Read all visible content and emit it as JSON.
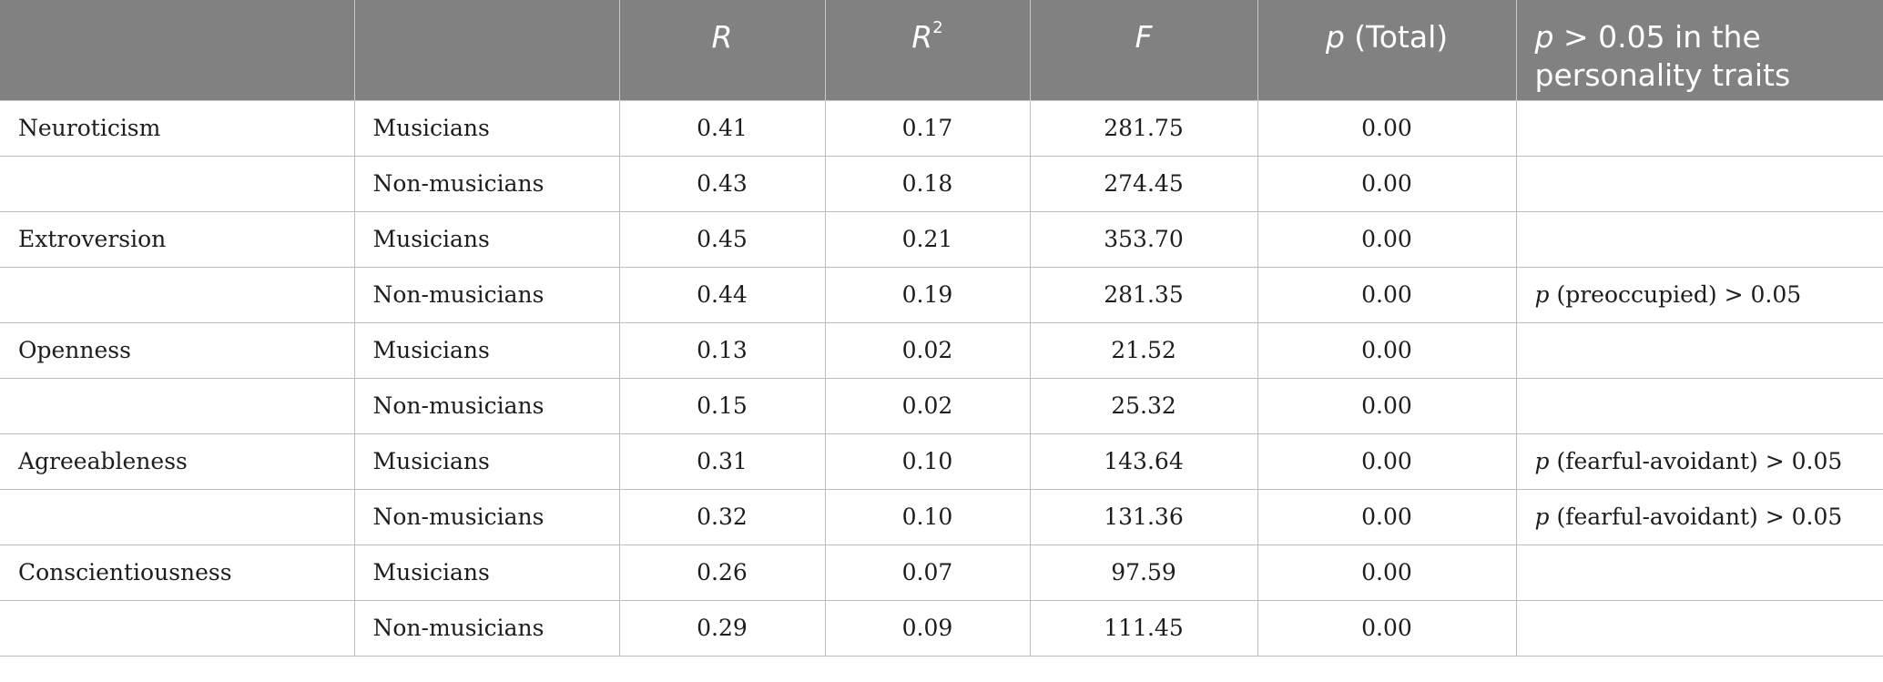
{
  "header": {
    "col_r": "R",
    "col_r2_base": "R",
    "col_r2_sup": "2",
    "col_f": "F",
    "col_p_italic": "p",
    "col_p_rest": " (Total)",
    "col_last_italic": "p",
    "col_last_line1_rest": " > 0.05 in the",
    "col_last_line2": "personality traits"
  },
  "rows": [
    {
      "trait": "Neuroticism",
      "group": "Musicians",
      "r": "0.41",
      "r2": "0.17",
      "f": "281.75",
      "p": "0.00",
      "note_p": "",
      "note_rest": ""
    },
    {
      "trait": "",
      "group": "Non-musicians",
      "r": "0.43",
      "r2": "0.18",
      "f": "274.45",
      "p": "0.00",
      "note_p": "",
      "note_rest": ""
    },
    {
      "trait": "Extroversion",
      "group": "Musicians",
      "r": "0.45",
      "r2": "0.21",
      "f": "353.70",
      "p": "0.00",
      "note_p": "",
      "note_rest": ""
    },
    {
      "trait": "",
      "group": "Non-musicians",
      "r": "0.44",
      "r2": "0.19",
      "f": "281.35",
      "p": "0.00",
      "note_p": "p",
      "note_rest": " (preoccupied) > 0.05"
    },
    {
      "trait": "Openness",
      "group": "Musicians",
      "r": "0.13",
      "r2": "0.02",
      "f": "21.52",
      "p": "0.00",
      "note_p": "",
      "note_rest": ""
    },
    {
      "trait": "",
      "group": "Non-musicians",
      "r": "0.15",
      "r2": "0.02",
      "f": "25.32",
      "p": "0.00",
      "note_p": "",
      "note_rest": ""
    },
    {
      "trait": "Agreeableness",
      "group": "Musicians",
      "r": "0.31",
      "r2": "0.10",
      "f": "143.64",
      "p": "0.00",
      "note_p": "p",
      "note_rest": " (fearful-avoidant) > 0.05"
    },
    {
      "trait": "",
      "group": "Non-musicians",
      "r": "0.32",
      "r2": "0.10",
      "f": "131.36",
      "p": "0.00",
      "note_p": "p",
      "note_rest": " (fearful-avoidant) > 0.05"
    },
    {
      "trait": "Conscientiousness",
      "group": "Musicians",
      "r": "0.26",
      "r2": "0.07",
      "f": "97.59",
      "p": "0.00",
      "note_p": "",
      "note_rest": ""
    },
    {
      "trait": "",
      "group": "Non-musicians",
      "r": "0.29",
      "r2": "0.09",
      "f": "111.45",
      "p": "0.00",
      "note_p": "",
      "note_rest": ""
    }
  ]
}
